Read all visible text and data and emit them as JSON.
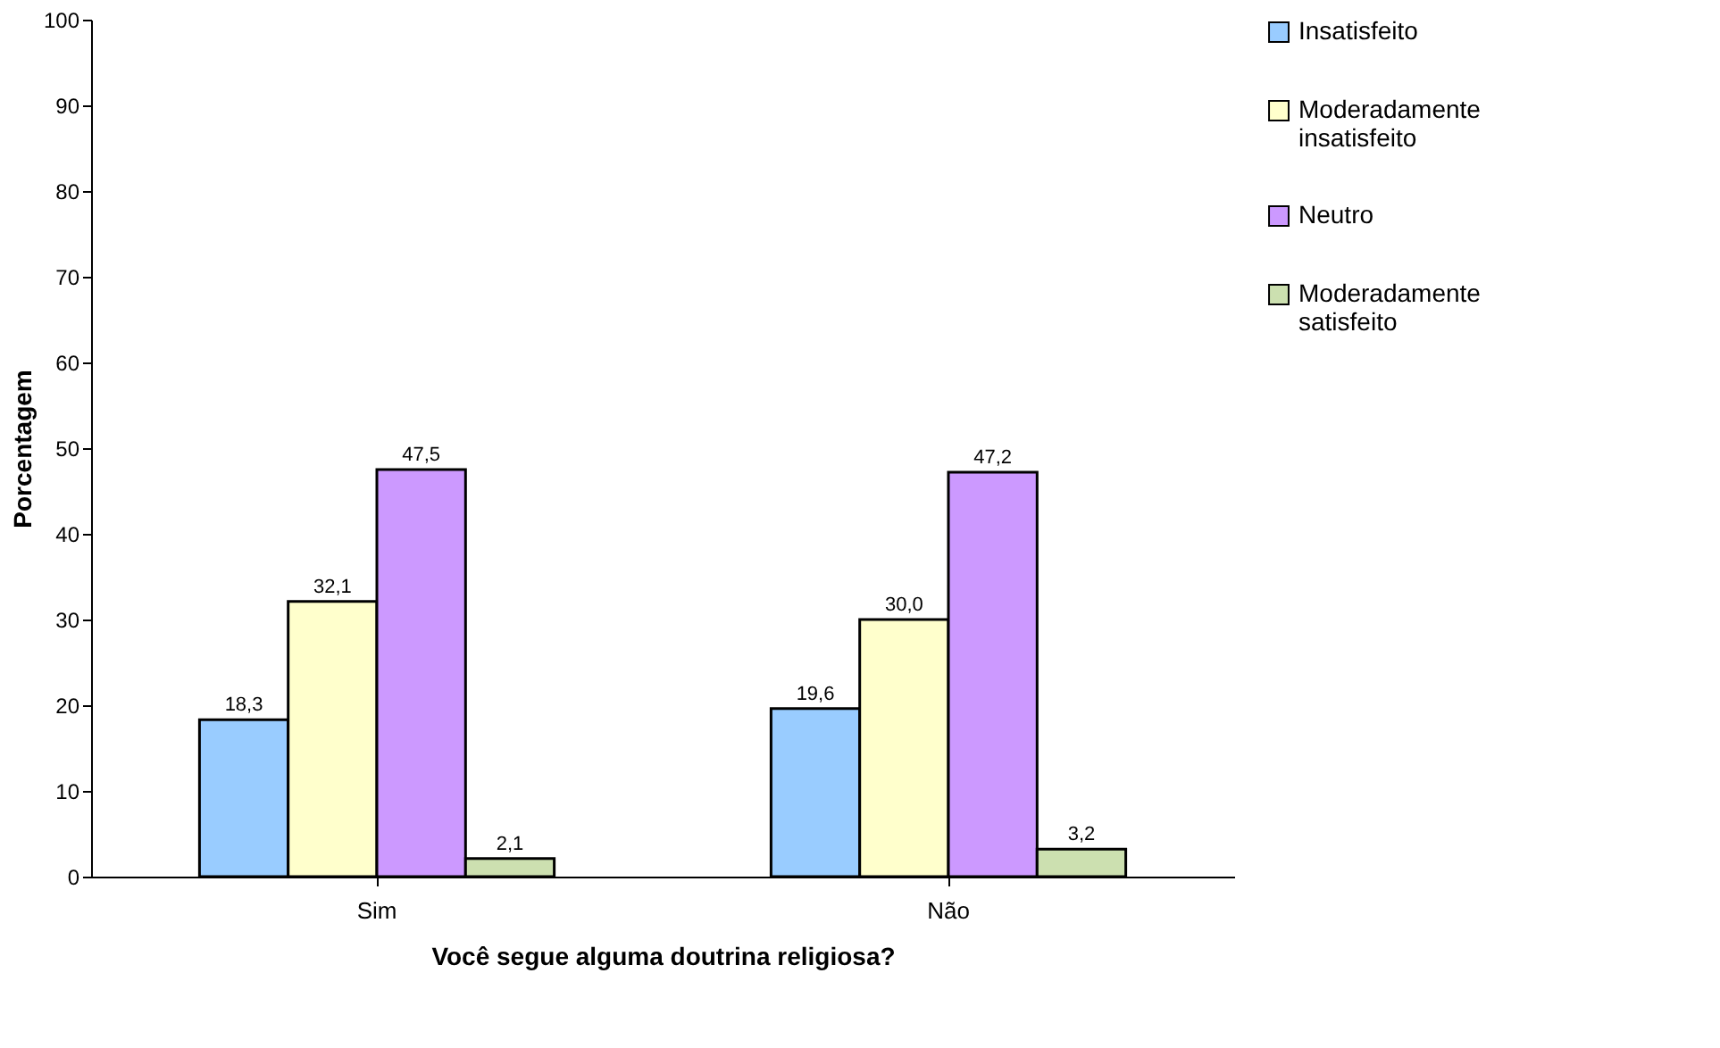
{
  "chart_data": {
    "type": "bar",
    "xlabel": "Você segue alguma doutrina religiosa?",
    "ylabel": "Porcentagem",
    "categories": [
      "Sim",
      "Não"
    ],
    "series": [
      {
        "name": "Insatisfeito",
        "color": "#99ccff",
        "values": [
          18.3,
          19.6
        ],
        "value_labels": [
          "18,3",
          "19,6"
        ]
      },
      {
        "name": "Moderadamente insatisfeito",
        "color": "#ffffcc",
        "values": [
          32.1,
          30.0
        ],
        "value_labels": [
          "32,1",
          "30,0"
        ]
      },
      {
        "name": "Neutro",
        "color": "#cc99ff",
        "values": [
          47.5,
          47.2
        ],
        "value_labels": [
          "47,5",
          "47,2"
        ]
      },
      {
        "name": "Moderadamente satisfeito",
        "color": "#cce0b0",
        "values": [
          2.1,
          3.2
        ],
        "value_labels": [
          "2,1",
          "3,2"
        ]
      }
    ],
    "ylim": [
      0,
      100
    ],
    "yticks": [
      0,
      10,
      20,
      30,
      40,
      50,
      60,
      70,
      80,
      90,
      100
    ],
    "grid": false,
    "legend": "right"
  }
}
